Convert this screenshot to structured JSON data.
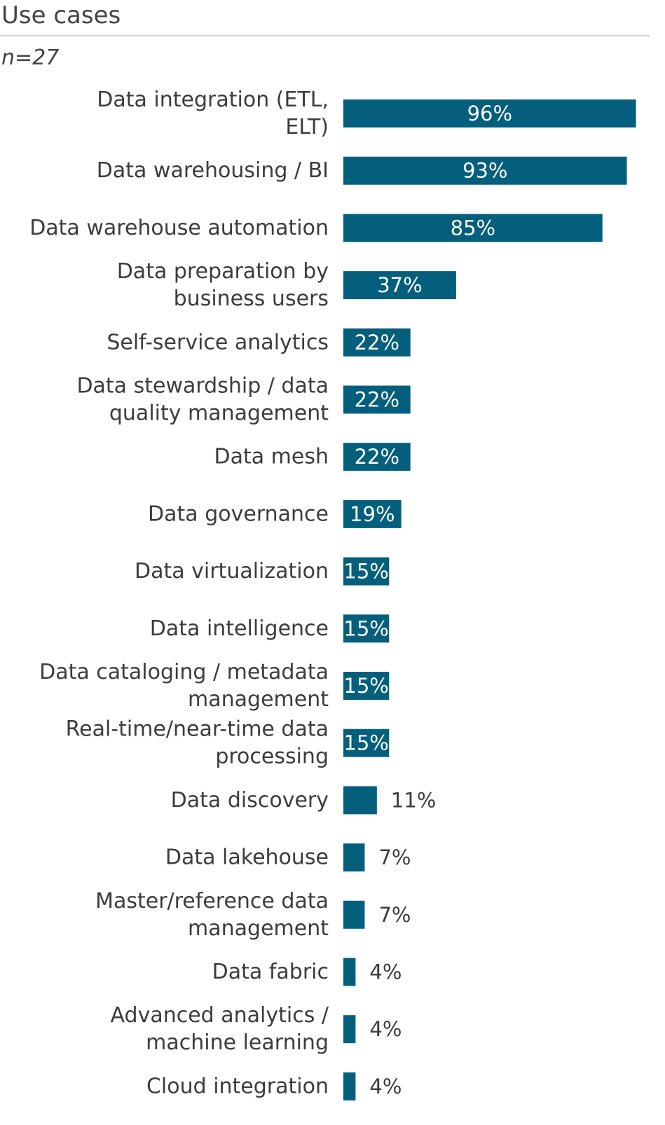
{
  "title": "Use cases",
  "subtitle": "n=27",
  "colors": {
    "bar": "#045f7d",
    "label_inside": "#ffffff",
    "label_outside": "#3c3c3c"
  },
  "chart_data": {
    "type": "bar",
    "orientation": "horizontal",
    "title": "Use cases",
    "subtitle": "n=27",
    "xlabel": "",
    "ylabel": "",
    "xlim": [
      0,
      100
    ],
    "grid": false,
    "legend": "none",
    "value_format": "percent",
    "categories": [
      [
        "Data integration (ETL,",
        "ELT)"
      ],
      [
        "Data warehousing / BI"
      ],
      [
        "Data warehouse automation"
      ],
      [
        "Data preparation by",
        "business users"
      ],
      [
        "Self-service analytics"
      ],
      [
        "Data stewardship / data",
        "quality management"
      ],
      [
        "Data mesh"
      ],
      [
        "Data governance"
      ],
      [
        "Data virtualization"
      ],
      [
        "Data intelligence"
      ],
      [
        "Data cataloging / metadata",
        "management"
      ],
      [
        "Real-time/near-time data",
        "processing"
      ],
      [
        "Data discovery"
      ],
      [
        "Data lakehouse"
      ],
      [
        "Master/reference data",
        "management"
      ],
      [
        "Data fabric"
      ],
      [
        "Advanced analytics /",
        "machine learning"
      ],
      [
        "Cloud integration"
      ]
    ],
    "values": [
      96,
      93,
      85,
      37,
      22,
      22,
      22,
      19,
      15,
      15,
      15,
      15,
      11,
      7,
      7,
      4,
      4,
      4
    ],
    "data_labels": [
      "96%",
      "93%",
      "85%",
      "37%",
      "22%",
      "22%",
      "22%",
      "19%",
      "15%",
      "15%",
      "15%",
      "15%",
      "11%",
      "7%",
      "7%",
      "4%",
      "4%",
      "4%"
    ]
  }
}
